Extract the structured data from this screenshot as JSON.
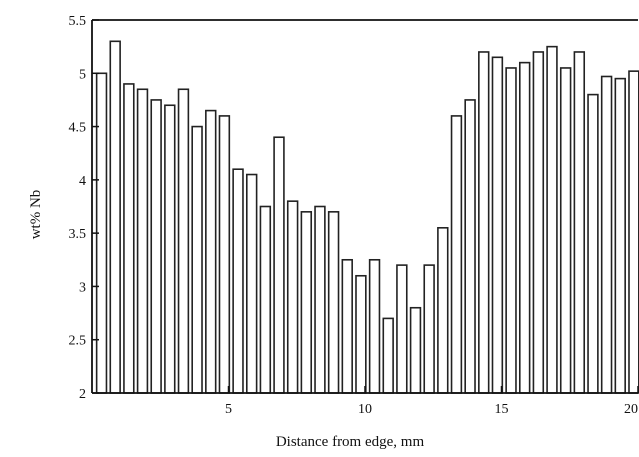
{
  "chart_data": {
    "type": "bar",
    "title": "",
    "xlabel": "Distance from edge, mm",
    "ylabel": "wt% Nb",
    "xlim": [
      0,
      20
    ],
    "ylim": [
      2,
      5.5
    ],
    "x_ticks": [
      5,
      10,
      15,
      20
    ],
    "x_tick_labels": [
      "5",
      "10",
      "15",
      "20"
    ],
    "y_ticks": [
      2,
      2.5,
      3,
      3.5,
      4,
      4.5,
      5,
      5.5
    ],
    "y_tick_labels": [
      "2",
      "2.5",
      "3",
      "3.5",
      "4",
      "4.5",
      "5",
      "5.5"
    ],
    "grid": false,
    "legend": "none",
    "bar_color": "#ffffff",
    "bar_edge_color": "#222222",
    "series": [
      {
        "x": [
          0.35,
          0.85,
          1.35,
          1.85,
          2.35,
          2.85,
          3.35,
          3.85,
          4.35,
          4.85,
          5.35,
          5.85,
          6.35,
          6.85,
          7.35,
          7.85,
          8.35,
          8.85,
          9.35,
          9.85,
          10.35,
          10.85,
          11.35,
          11.85,
          12.35,
          12.85,
          13.35,
          13.85,
          14.35,
          14.85,
          15.35,
          15.85,
          16.35,
          16.85,
          17.35,
          17.85,
          18.35,
          18.85,
          19.35,
          19.85
        ],
        "values": [
          5.0,
          5.3,
          4.9,
          4.85,
          4.75,
          4.7,
          4.85,
          4.5,
          4.65,
          4.6,
          4.1,
          4.05,
          3.75,
          4.4,
          3.8,
          3.7,
          3.75,
          3.7,
          3.25,
          3.1,
          3.25,
          2.7,
          3.2,
          2.8,
          3.2,
          3.55,
          4.6,
          4.75,
          5.2,
          5.15,
          5.05,
          5.1,
          5.2,
          5.25,
          5.05,
          5.2,
          4.8,
          4.97,
          4.95,
          5.02
        ]
      }
    ]
  }
}
